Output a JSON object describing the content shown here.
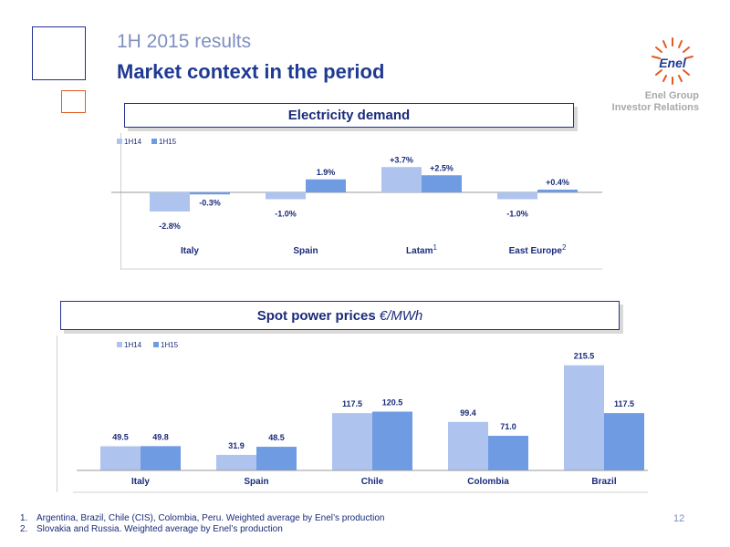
{
  "header": {
    "supertitle": "1H 2015 results",
    "title": "Market context in the period",
    "logo_text": "Enel",
    "group_line1": "Enel Group",
    "group_line2": "Investor Relations"
  },
  "colors": {
    "series_1H14": "#aec4ee",
    "series_1H15": "#6f9be3",
    "title_blue": "#1f3a93",
    "accent_orange": "#e35a1f"
  },
  "demand": {
    "title": "Electricity demand",
    "legend": [
      "1H14",
      "1H15"
    ],
    "categories": [
      "Italy",
      "Spain",
      "Latam",
      "East Europe"
    ],
    "superscripts": [
      "",
      "",
      "1",
      "2"
    ],
    "series": [
      {
        "name": "1H14",
        "values": [
          -2.8,
          -1.0,
          3.7,
          -1.0
        ],
        "labels": [
          "-2.8%",
          "-1.0%",
          "+3.7%",
          "-1.0%"
        ]
      },
      {
        "name": "1H15",
        "values": [
          -0.3,
          1.9,
          2.5,
          0.4
        ],
        "labels": [
          "-0.3%",
          "1.9%",
          "+2.5%",
          "+0.4%"
        ]
      }
    ]
  },
  "prices": {
    "title": "Spot power prices",
    "unit": "€/MWh",
    "legend": [
      "1H14",
      "1H15"
    ],
    "categories": [
      "Italy",
      "Spain",
      "Chile",
      "Colombia",
      "Brazil"
    ],
    "series": [
      {
        "name": "1H14",
        "values": [
          49.5,
          31.9,
          117.5,
          99.4,
          215.5
        ],
        "labels": [
          "49.5",
          "31.9",
          "117.5",
          "99.4",
          "215.5"
        ]
      },
      {
        "name": "1H15",
        "values": [
          49.8,
          48.5,
          120.5,
          71.0,
          117.5
        ],
        "labels": [
          "49.8",
          "48.5",
          "120.5",
          "71.0",
          "117.5"
        ]
      }
    ]
  },
  "chart_data": [
    {
      "type": "bar",
      "title": "Electricity demand",
      "categories": [
        "Italy",
        "Spain",
        "Latam",
        "East Europe"
      ],
      "series": [
        {
          "name": "1H14",
          "values": [
            -2.8,
            -1.0,
            3.7,
            -1.0
          ]
        },
        {
          "name": "1H15",
          "values": [
            -0.3,
            1.9,
            2.5,
            0.4
          ]
        }
      ],
      "legend": "top-left"
    },
    {
      "type": "bar",
      "title": "Spot power prices",
      "ylabel": "€/MWh",
      "categories": [
        "Italy",
        "Spain",
        "Chile",
        "Colombia",
        "Brazil"
      ],
      "series": [
        {
          "name": "1H14",
          "values": [
            49.5,
            31.9,
            117.5,
            99.4,
            215.5
          ]
        },
        {
          "name": "1H15",
          "values": [
            49.8,
            48.5,
            120.5,
            71.0,
            117.5
          ]
        }
      ],
      "legend": "top-left"
    }
  ],
  "footnotes": [
    {
      "num": "1.",
      "text": "Argentina, Brazil, Chile (CIS), Colombia, Peru. Weighted average by Enel’s production"
    },
    {
      "num": "2.",
      "text": "Slovakia and Russia. Weighted average by Enel’s production"
    }
  ],
  "page_number": "12"
}
